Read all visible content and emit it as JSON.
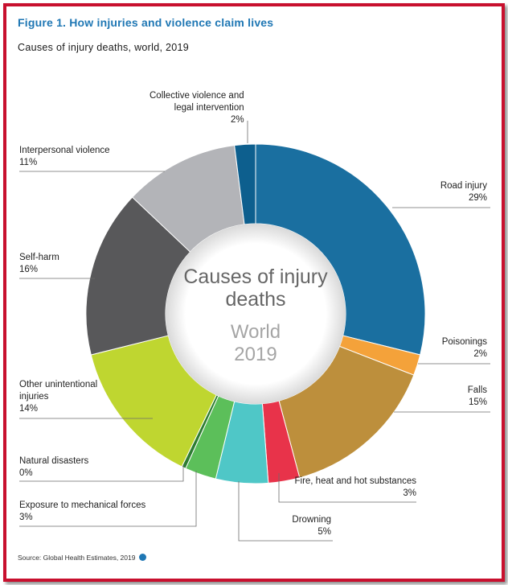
{
  "figure": {
    "title": "Figure 1. How injuries and violence claim lives",
    "subtitle": "Causes of injury deaths, world, 2019",
    "source": "Source: Global Health Estimates, 2019"
  },
  "chart_data": {
    "type": "pie",
    "variant": "donut",
    "title": "Causes of injury deaths",
    "center_label": {
      "line1": "Causes of injury",
      "line2": "deaths",
      "line3": "World",
      "line4": "2019"
    },
    "slices": [
      {
        "name": "Road injury",
        "value": 29,
        "label": "29%",
        "color": "#1a6fa0"
      },
      {
        "name": "Poisonings",
        "value": 2,
        "label": "2%",
        "color": "#f4a23a"
      },
      {
        "name": "Falls",
        "value": 15,
        "label": "15%",
        "color": "#bd8f3c"
      },
      {
        "name": "Fire, heat and hot substances",
        "value": 3,
        "label": "3%",
        "color": "#e8334a"
      },
      {
        "name": "Drowning",
        "value": 5,
        "label": "5%",
        "color": "#4fc7c7"
      },
      {
        "name": "Exposure to mechanical forces",
        "value": 3,
        "label": "3%",
        "color": "#5cbf5a"
      },
      {
        "name": "Natural disasters",
        "value": 0.4,
        "label": "0%",
        "color": "#2e7d32"
      },
      {
        "name": "Other unintentional injuries",
        "value": 14,
        "label": "14%",
        "color": "#bfd630"
      },
      {
        "name": "Self-harm",
        "value": 16,
        "label": "16%",
        "color": "#58585a"
      },
      {
        "name": "Interpersonal violence",
        "value": 11,
        "label": "11%",
        "color": "#b3b4b8"
      },
      {
        "name": "Collective violence and legal intervention",
        "value": 2,
        "label": "2%",
        "color": "#0d5f8e"
      }
    ]
  },
  "labels": {
    "collective_line1": "Collective violence and",
    "collective_line2": "legal intervention",
    "collective_pct": "2%",
    "interpersonal": "Interpersonal violence",
    "interpersonal_pct": "11%",
    "selfharm": "Self-harm",
    "selfharm_pct": "16%",
    "other_line1": "Other unintentional",
    "other_line2": "injuries",
    "other_pct": "14%",
    "natural": "Natural disasters",
    "natural_pct": "0%",
    "mechanical": "Exposure to mechanical forces",
    "mechanical_pct": "3%",
    "drowning": "Drowning",
    "drowning_pct": "5%",
    "fire": "Fire, heat and hot substances",
    "fire_pct": "3%",
    "falls": "Falls",
    "falls_pct": "15%",
    "poison": "Poisonings",
    "poison_pct": "2%",
    "road": "Road injury",
    "road_pct": "29%"
  }
}
